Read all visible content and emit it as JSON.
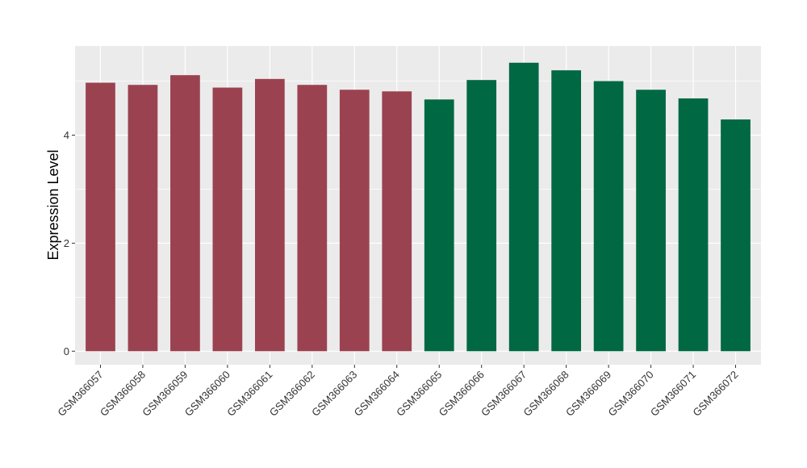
{
  "chart_data": {
    "type": "bar",
    "title": "",
    "xlabel": "",
    "ylabel": "Expression Level",
    "ylim": [
      -0.25,
      5.65
    ],
    "yticks": [
      0,
      2,
      4
    ],
    "categories": [
      "GSM366057",
      "GSM366058",
      "GSM366059",
      "GSM366060",
      "GSM366061",
      "GSM366062",
      "GSM366063",
      "GSM366064",
      "GSM366065",
      "GSM366066",
      "GSM366067",
      "GSM366068",
      "GSM366069",
      "GSM366070",
      "GSM366071",
      "GSM366072"
    ],
    "values": [
      4.97,
      4.93,
      5.11,
      4.88,
      5.04,
      4.93,
      4.84,
      4.81,
      4.66,
      5.02,
      5.34,
      5.2,
      5.0,
      4.84,
      4.68,
      4.29
    ],
    "groups": [
      0,
      0,
      0,
      0,
      0,
      0,
      0,
      0,
      1,
      1,
      1,
      1,
      1,
      1,
      1,
      1
    ],
    "group_colors": [
      "#9b4250",
      "#006843"
    ],
    "grid": true,
    "panel_background": "#ebebeb",
    "legend": "none"
  }
}
